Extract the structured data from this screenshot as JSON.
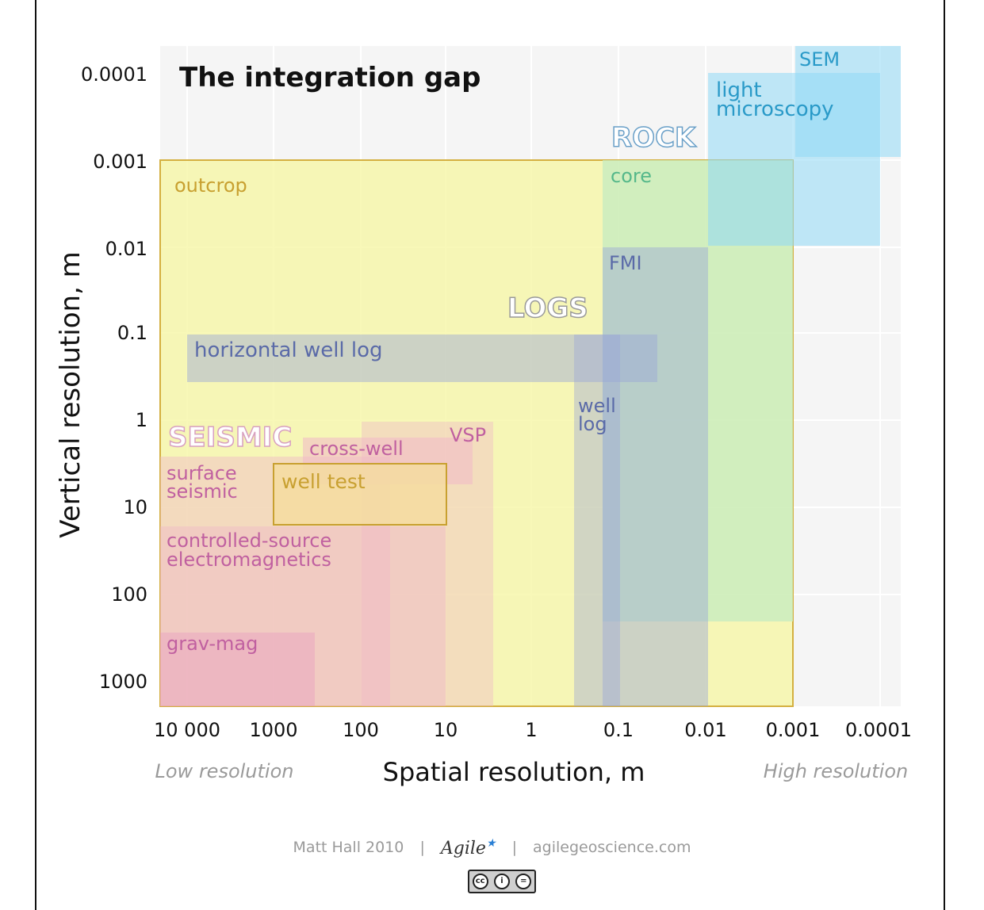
{
  "title": "The integration gap",
  "x_axis": {
    "label": "Spatial resolution, m",
    "ticks": [
      "10 000",
      "1000",
      "100",
      "10",
      "1",
      "0.1",
      "0.01",
      "0.001",
      "0.0001"
    ],
    "low_note": "Low resolution",
    "high_note": "High resolution"
  },
  "y_axis": {
    "label": "Vertical resolution, m",
    "ticks": [
      "0.0001",
      "0.001",
      "0.01",
      "0.1",
      "1",
      "10",
      "100",
      "1000"
    ]
  },
  "categories": {
    "rock": "ROCK",
    "logs": "LOGS",
    "seismic": "SEISMIC"
  },
  "regions": [
    {
      "id": "outcrop",
      "label": "outcrop",
      "spatial_m": [
        10000,
        0.001
      ],
      "vertical_m": [
        0.001,
        1000
      ],
      "color": "#f5f5a0",
      "label_color": "#c8a030"
    },
    {
      "id": "core",
      "label": "core",
      "spatial_m": [
        0.1,
        0.001
      ],
      "vertical_m": [
        0.001,
        1000
      ],
      "color": "#c8ecc0",
      "label_color": "#55b88a"
    },
    {
      "id": "light-microscopy",
      "label": "light microscopy",
      "spatial_m": [
        0.01,
        0.0001
      ],
      "vertical_m": [
        0.0001,
        0.01
      ],
      "color": "#8fd8f5",
      "label_color": "#2a9ac8"
    },
    {
      "id": "sem",
      "label": "SEM",
      "spatial_m": [
        0.001,
        0.0001
      ],
      "vertical_m": [
        0.0001,
        0.001
      ],
      "color": "#8fd8f5",
      "label_color": "#2a9ac8"
    },
    {
      "id": "fmi",
      "label": "FMI",
      "spatial_m": [
        0.1,
        0.01
      ],
      "vertical_m": [
        0.01,
        1000
      ],
      "color": "#9aa6d6",
      "label_color": "#5a6aa8"
    },
    {
      "id": "horizontal-well-log",
      "label": "horizontal well log",
      "spatial_m": [
        10000,
        0.1
      ],
      "vertical_m": [
        0.1,
        1
      ],
      "color": "#9aa6d6",
      "label_color": "#5a6aa8"
    },
    {
      "id": "well-log",
      "label": "well log",
      "spatial_m": [
        1,
        0.1
      ],
      "vertical_m": [
        0.1,
        1000
      ],
      "color": "#9aa6d6",
      "label_color": "#5a6aa8"
    },
    {
      "id": "vsp",
      "label": "VSP",
      "spatial_m": [
        100,
        1
      ],
      "vertical_m": [
        1,
        1000
      ],
      "color": "#f0b8c8",
      "label_color": "#c060a0"
    },
    {
      "id": "cross-well",
      "label": "cross-well",
      "spatial_m": [
        1000,
        10
      ],
      "vertical_m": [
        1,
        10
      ],
      "color": "#f0b8c8",
      "label_color": "#c060a0"
    },
    {
      "id": "surface-seismic",
      "label": "surface seismic",
      "spatial_m": [
        10000,
        10
      ],
      "vertical_m": [
        1,
        1000
      ],
      "color": "#f0b8c8",
      "label_color": "#c060a0"
    },
    {
      "id": "controlled-source-electromagnetics",
      "label": "controlled-source electromagnetics",
      "spatial_m": [
        10000,
        100
      ],
      "vertical_m": [
        10,
        1000
      ],
      "color": "#f0b8c8",
      "label_color": "#c060a0"
    },
    {
      "id": "grav-mag",
      "label": "grav-mag",
      "spatial_m": [
        10000,
        1000
      ],
      "vertical_m": [
        100,
        1000
      ],
      "color": "#f0b8c8",
      "label_color": "#c060a0"
    },
    {
      "id": "well-test",
      "label": "well test",
      "spatial_m": [
        1000,
        10
      ],
      "vertical_m": [
        1,
        10
      ],
      "color": "#f5dca0",
      "label_color": "#c8a030"
    }
  ],
  "footer": {
    "author": "Matt Hall 2010",
    "separator": "|",
    "logo": "Agile",
    "website": "agilegeoscience.com",
    "license_symbols": [
      "cc",
      "i",
      "="
    ]
  }
}
